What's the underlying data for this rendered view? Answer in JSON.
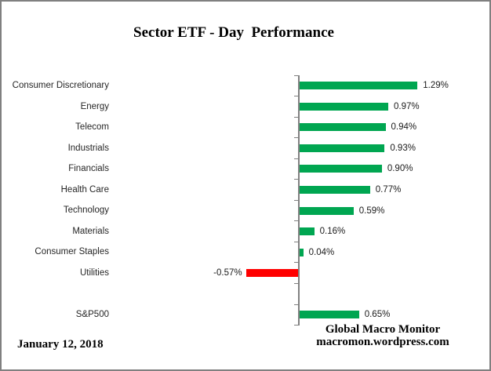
{
  "window": {
    "background_color": "#ffffff",
    "border_color": "#808080"
  },
  "chart_data": {
    "type": "bar",
    "orientation": "horizontal",
    "title": "Sector ETF - Day  Performance",
    "unit": "percent",
    "categories": [
      "Consumer Discretionary",
      "Energy",
      "Telecom",
      "Industrials",
      "Financials",
      "Health Care",
      "Technology",
      "Materials",
      "Consumer Staples",
      "Utilities",
      "",
      "S&P500"
    ],
    "values": [
      1.29,
      0.97,
      0.94,
      0.93,
      0.9,
      0.77,
      0.59,
      0.16,
      0.04,
      -0.57,
      null,
      0.65
    ],
    "data_labels": [
      "1.29%",
      "0.97%",
      "0.94%",
      "0.93%",
      "0.90%",
      "0.77%",
      "0.59%",
      "0.16%",
      "0.04%",
      "-0.57%",
      "",
      "0.65%"
    ],
    "positive_color": "#00a651",
    "negative_color": "#ff0000",
    "axis_color": "#808080",
    "xlim": [
      -0.8,
      1.6
    ],
    "gridlines": false,
    "legend": false,
    "value_axis_labels_visible": false
  },
  "footer": {
    "date": "January 12, 2018",
    "attribution_line1": "Global Macro Monitor",
    "attribution_line2": "macromon.wordpress.com"
  }
}
